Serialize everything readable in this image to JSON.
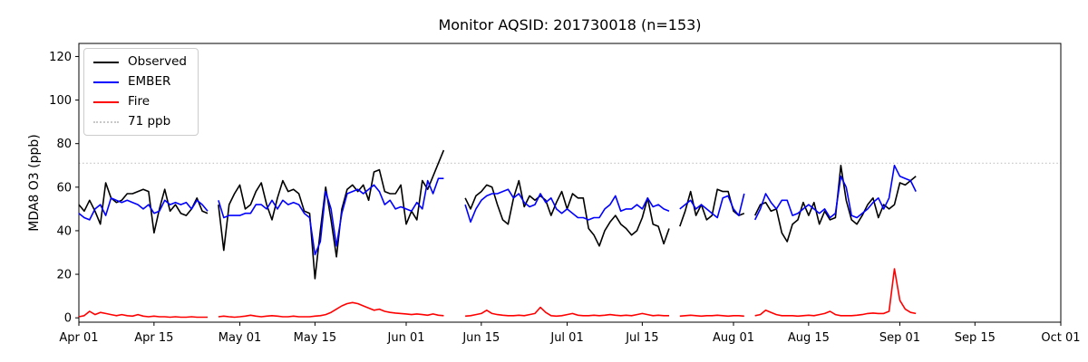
{
  "chart_data": {
    "type": "line",
    "title": "Monitor AQSID: 201730018 (n=153)",
    "xlabel": "",
    "ylabel": "MDA8 O3 (ppb)",
    "ylim": [
      -2,
      126
    ],
    "yticks": [
      0,
      20,
      40,
      60,
      80,
      100,
      120
    ],
    "xtick_labels": [
      "Apr 01",
      "Apr 15",
      "May 01",
      "May 15",
      "Jun 01",
      "Jun 15",
      "Jul 01",
      "Jul 15",
      "Aug 01",
      "Aug 15",
      "Sep 01",
      "Sep 15",
      "Oct 01"
    ],
    "xtick_days": [
      0,
      14,
      30,
      44,
      61,
      75,
      91,
      105,
      122,
      136,
      153,
      167,
      183
    ],
    "x_total_days": 183,
    "x_unit": "day offset from Apr 01",
    "series_start_day": 0,
    "grid": false,
    "legend_position": "upper left",
    "legend": [
      "Observed",
      "EMBER",
      "Fire",
      "71 ppb"
    ],
    "reference_line": {
      "label": "71 ppb",
      "value": 71,
      "color": "#c8c8c8",
      "style": "dotted"
    },
    "series": [
      {
        "name": "Observed",
        "color": "#000000",
        "style": "solid",
        "values": [
          52,
          49,
          54,
          49,
          43,
          62,
          55,
          53,
          54,
          57,
          57,
          58,
          59,
          58,
          39,
          50,
          59,
          49,
          52,
          48,
          47,
          50,
          55,
          49,
          48,
          null,
          52,
          31,
          52,
          57,
          61,
          50,
          52,
          58,
          62,
          52,
          45,
          55,
          63,
          58,
          59,
          57,
          49,
          48,
          18,
          40,
          60,
          45,
          28,
          50,
          59,
          61,
          58,
          61,
          54,
          67,
          68,
          58,
          57,
          57,
          61,
          43,
          49,
          45,
          63,
          59,
          65,
          71,
          77,
          null,
          null,
          null,
          55,
          50,
          56,
          58,
          61,
          60,
          52,
          45,
          43,
          55,
          63,
          51,
          56,
          54,
          56,
          54,
          47,
          53,
          58,
          50,
          57,
          55,
          55,
          41,
          38,
          33,
          40,
          44,
          47,
          43,
          41,
          38,
          40,
          46,
          55,
          43,
          42,
          34,
          41,
          null,
          42,
          49,
          58,
          47,
          52,
          45,
          47,
          59,
          58,
          58,
          49,
          47,
          48,
          null,
          47,
          52,
          53,
          49,
          50,
          39,
          35,
          43,
          45,
          53,
          47,
          53,
          43,
          49,
          45,
          46,
          70,
          54,
          45,
          43,
          47,
          52,
          55,
          46,
          52,
          50,
          52,
          62,
          61,
          63,
          65
        ]
      },
      {
        "name": "EMBER",
        "color": "#0000ff",
        "style": "solid",
        "values": [
          48,
          46,
          45,
          50,
          52,
          47,
          55,
          54,
          53,
          54,
          53,
          52,
          50,
          52,
          48,
          49,
          54,
          52,
          53,
          52,
          53,
          50,
          54,
          52,
          49,
          null,
          54,
          46,
          47,
          47,
          47,
          48,
          48,
          52,
          52,
          50,
          54,
          50,
          54,
          52,
          53,
          52,
          48,
          46,
          29,
          35,
          58,
          50,
          33,
          48,
          57,
          58,
          59,
          57,
          59,
          61,
          58,
          52,
          54,
          50,
          51,
          50,
          49,
          53,
          50,
          63,
          57,
          64,
          64,
          null,
          null,
          null,
          52,
          44,
          50,
          54,
          56,
          57,
          57,
          58,
          59,
          55,
          57,
          53,
          51,
          52,
          57,
          53,
          55,
          50,
          48,
          50,
          48,
          46,
          46,
          45,
          46,
          46,
          50,
          52,
          56,
          49,
          50,
          50,
          52,
          50,
          55,
          51,
          52,
          50,
          49,
          null,
          50,
          52,
          54,
          50,
          52,
          50,
          48,
          46,
          55,
          56,
          50,
          47,
          57,
          null,
          45,
          50,
          57,
          53,
          50,
          54,
          54,
          47,
          48,
          50,
          52,
          50,
          48,
          50,
          46,
          48,
          65,
          60,
          47,
          46,
          48,
          50,
          53,
          55,
          50,
          55,
          70,
          65,
          64,
          63,
          58
        ]
      },
      {
        "name": "Fire",
        "color": "#ff0000",
        "style": "solid",
        "values": [
          0.5,
          1,
          3,
          1.5,
          2.5,
          2,
          1.5,
          1,
          1.5,
          1,
          0.8,
          1.5,
          0.8,
          0.5,
          0.8,
          0.5,
          0.5,
          0.3,
          0.5,
          0.3,
          0.3,
          0.5,
          0.3,
          0.3,
          0.3,
          null,
          0.5,
          0.8,
          0.5,
          0.3,
          0.5,
          0.8,
          1.2,
          0.8,
          0.5,
          0.8,
          1,
          0.8,
          0.5,
          0.5,
          0.8,
          0.5,
          0.5,
          0.5,
          0.8,
          1,
          1.5,
          2.5,
          4,
          5.5,
          6.5,
          7,
          6.5,
          5.5,
          4.5,
          3.5,
          4,
          3,
          2.5,
          2.2,
          2,
          1.8,
          1.5,
          1.8,
          1.5,
          1.2,
          1.8,
          1.2,
          1,
          null,
          null,
          null,
          0.8,
          1,
          1.5,
          2,
          3.5,
          2,
          1.5,
          1.2,
          1,
          1,
          1.2,
          1,
          1.5,
          2,
          4.8,
          2.5,
          1,
          0.8,
          1,
          1.5,
          2,
          1.2,
          1,
          1,
          1.2,
          1,
          1.2,
          1.5,
          1.2,
          1,
          1.2,
          1,
          1.5,
          2,
          1.5,
          1,
          1.2,
          1,
          1,
          null,
          0.8,
          1,
          1.2,
          1,
          0.8,
          1,
          1,
          1.2,
          1,
          0.8,
          1,
          1,
          0.8,
          null,
          1,
          1.5,
          3.5,
          2.5,
          1.5,
          1,
          1,
          1,
          0.8,
          1,
          1.2,
          1,
          1.5,
          2,
          3,
          1.5,
          1,
          1,
          1,
          1.2,
          1.5,
          2,
          2.2,
          2,
          2,
          3,
          22.5,
          8,
          4,
          2.5,
          2
        ]
      }
    ]
  }
}
